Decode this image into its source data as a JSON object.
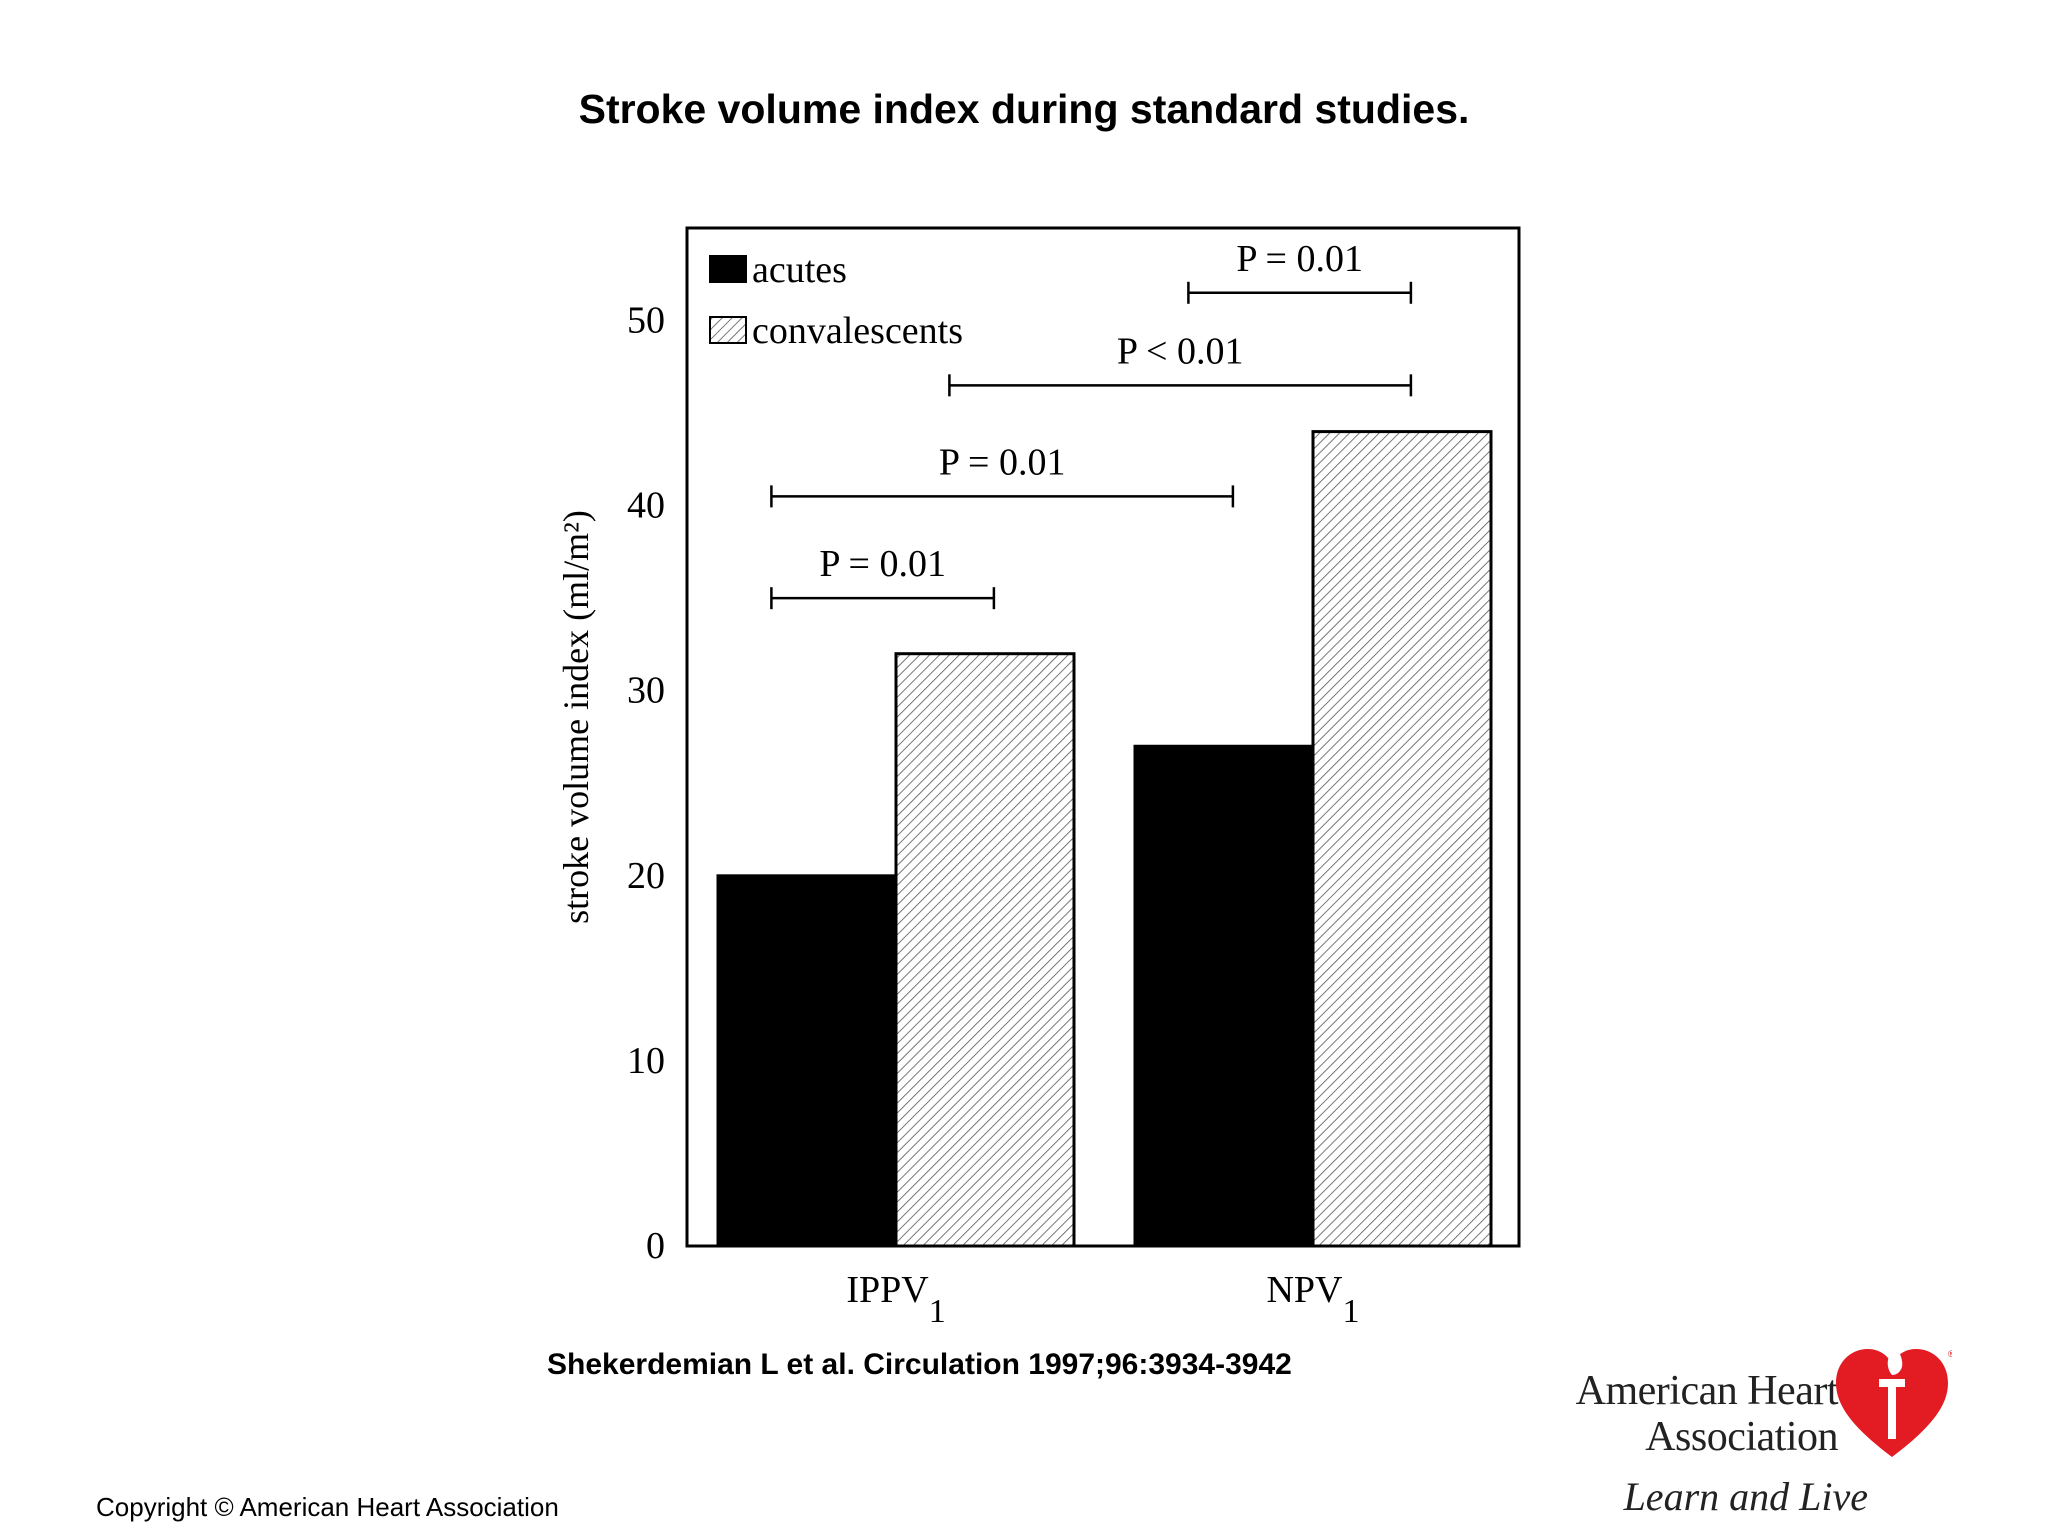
{
  "slide": {
    "title": "Stroke volume index during standard studies.",
    "citation": "Shekerdemian L et al. Circulation 1997;96:3934-3942",
    "copyright": "Copyright © American Heart Association"
  },
  "logo": {
    "line1": "American Heart",
    "line2": "Association",
    "tagline": "Learn and Live",
    "icon": "heart-torch-icon",
    "color": "#e31b23"
  },
  "chart_data": {
    "type": "bar",
    "ylabel": "stroke volume index (ml/m²)",
    "ylim": [
      0,
      55
    ],
    "yticks": [
      0,
      10,
      20,
      30,
      40,
      50
    ],
    "categories": [
      {
        "label": "IPPV",
        "sub": "1"
      },
      {
        "label": "NPV",
        "sub": "1"
      }
    ],
    "series": [
      {
        "name": "acutes",
        "values": [
          20,
          27
        ],
        "fill": "#000000",
        "pattern": "solid"
      },
      {
        "name": "convalescents",
        "values": [
          32,
          44
        ],
        "fill": "#ffffff",
        "pattern": "hatched"
      }
    ],
    "legend_position": "top-left",
    "annotations": [
      {
        "text": "P = 0.01",
        "from": {
          "category": 0,
          "series": 0
        },
        "to": {
          "category": 0,
          "series": 1
        },
        "level": 35
      },
      {
        "text": "P = 0.01",
        "from": {
          "category": 0,
          "series": 0
        },
        "to": {
          "category": 1,
          "series": 0
        },
        "level": 40.5
      },
      {
        "text": "P < 0.01",
        "from": {
          "category": 0,
          "series": 1
        },
        "to": {
          "category": 1,
          "series": 1
        },
        "level": 46.5
      },
      {
        "text": "P = 0.01",
        "from": {
          "category": 1,
          "series": 0
        },
        "to": {
          "category": 1,
          "series": 1
        },
        "level": 51.5
      }
    ]
  }
}
